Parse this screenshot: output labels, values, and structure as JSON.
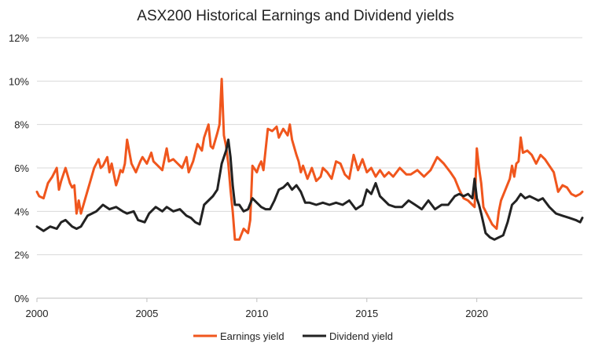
{
  "chart_data": {
    "type": "line",
    "title": "ASX200 Historical Earnings and Dividend yields",
    "xlabel": "",
    "ylabel": "",
    "xlim": [
      2000,
      2024.8
    ],
    "ylim": [
      0,
      12
    ],
    "xticks": [
      2000,
      2005,
      2010,
      2015,
      2020
    ],
    "xtick_labels": [
      "2000",
      "2005",
      "2010",
      "2015",
      "2020"
    ],
    "yticks": [
      0,
      2,
      4,
      6,
      8,
      10,
      12
    ],
    "ytick_labels": [
      "0%",
      "2%",
      "4%",
      "6%",
      "8%",
      "10%",
      "12%"
    ],
    "grid": "horizontal",
    "legend_position": "bottom-center",
    "colors": {
      "earnings": "#f0561d",
      "dividend": "#222222",
      "grid": "#d9d9d9",
      "axis": "#bfbfbf"
    },
    "series": [
      {
        "name": "Earnings yield",
        "x": [
          2000.0,
          2000.1,
          2000.3,
          2000.5,
          2000.7,
          2000.9,
          2001.0,
          2001.1,
          2001.2,
          2001.3,
          2001.5,
          2001.6,
          2001.7,
          2001.8,
          2001.9,
          2002.0,
          2002.2,
          2002.4,
          2002.6,
          2002.8,
          2002.9,
          2003.0,
          2003.2,
          2003.3,
          2003.4,
          2003.6,
          2003.7,
          2003.8,
          2003.9,
          2004.0,
          2004.1,
          2004.3,
          2004.5,
          2004.7,
          2004.8,
          2005.0,
          2005.2,
          2005.3,
          2005.5,
          2005.7,
          2005.9,
          2006.0,
          2006.2,
          2006.4,
          2006.6,
          2006.8,
          2006.9,
          2007.1,
          2007.3,
          2007.5,
          2007.6,
          2007.8,
          2007.9,
          2008.0,
          2008.2,
          2008.3,
          2008.4,
          2008.5,
          2008.6,
          2008.7,
          2008.8,
          2008.9,
          2009.0,
          2009.2,
          2009.4,
          2009.6,
          2009.7,
          2009.8,
          2010.0,
          2010.1,
          2010.2,
          2010.3,
          2010.5,
          2010.7,
          2010.9,
          2011.0,
          2011.2,
          2011.4,
          2011.5,
          2011.6,
          2011.8,
          2011.9,
          2012.0,
          2012.1,
          2012.3,
          2012.5,
          2012.7,
          2012.9,
          2013.0,
          2013.2,
          2013.4,
          2013.6,
          2013.8,
          2014.0,
          2014.2,
          2014.4,
          2014.6,
          2014.8,
          2015.0,
          2015.2,
          2015.4,
          2015.6,
          2015.8,
          2016.0,
          2016.2,
          2016.5,
          2016.8,
          2017.0,
          2017.3,
          2017.6,
          2017.9,
          2018.2,
          2018.5,
          2018.8,
          2019.0,
          2019.2,
          2019.4,
          2019.6,
          2019.8,
          2019.9,
          2020.0,
          2020.1,
          2020.2,
          2020.3,
          2020.5,
          2020.7,
          2020.9,
          2021.0,
          2021.1,
          2021.3,
          2021.5,
          2021.6,
          2021.7,
          2021.8,
          2021.9,
          2022.0,
          2022.1,
          2022.3,
          2022.5,
          2022.7,
          2022.9,
          2023.1,
          2023.3,
          2023.5,
          2023.7,
          2023.9,
          2024.1,
          2024.3,
          2024.5,
          2024.7,
          2024.8
        ],
        "values": [
          4.9,
          4.7,
          4.6,
          5.3,
          5.6,
          6.0,
          5.0,
          5.4,
          5.7,
          6.0,
          5.3,
          5.1,
          5.2,
          3.9,
          4.5,
          3.9,
          4.6,
          5.3,
          6.0,
          6.4,
          6.0,
          6.1,
          6.5,
          5.8,
          6.2,
          5.2,
          5.5,
          5.9,
          5.8,
          6.2,
          7.3,
          6.2,
          5.8,
          6.3,
          6.5,
          6.2,
          6.7,
          6.3,
          6.1,
          5.9,
          6.9,
          6.3,
          6.4,
          6.2,
          6.0,
          6.5,
          5.8,
          6.3,
          7.1,
          6.8,
          7.4,
          8.0,
          7.0,
          6.9,
          7.6,
          8.0,
          10.1,
          7.5,
          7.0,
          6.2,
          5.0,
          4.0,
          2.7,
          2.7,
          3.2,
          3.0,
          3.6,
          6.1,
          5.8,
          6.1,
          6.3,
          5.9,
          7.8,
          7.7,
          7.9,
          7.4,
          7.8,
          7.5,
          8.0,
          7.3,
          6.6,
          6.3,
          5.8,
          6.1,
          5.5,
          6.0,
          5.4,
          5.6,
          6.0,
          5.8,
          5.5,
          6.3,
          6.2,
          5.7,
          5.5,
          6.6,
          5.9,
          6.4,
          5.8,
          6.0,
          5.6,
          5.9,
          5.6,
          5.8,
          5.6,
          6.0,
          5.7,
          5.7,
          5.9,
          5.6,
          5.9,
          6.5,
          6.2,
          5.8,
          5.5,
          5.0,
          4.6,
          4.5,
          4.3,
          4.2,
          6.9,
          6.0,
          5.3,
          4.2,
          3.8,
          3.4,
          3.2,
          4.0,
          4.5,
          5.0,
          5.5,
          6.1,
          5.6,
          6.2,
          6.3,
          7.4,
          6.7,
          6.8,
          6.6,
          6.2,
          6.6,
          6.4,
          6.1,
          5.8,
          4.9,
          5.2,
          5.1,
          4.8,
          4.7,
          4.8,
          4.9
        ]
      },
      {
        "name": "Dividend yield",
        "x": [
          2000.0,
          2000.3,
          2000.6,
          2000.9,
          2001.1,
          2001.3,
          2001.6,
          2001.8,
          2002.0,
          2002.3,
          2002.5,
          2002.7,
          2003.0,
          2003.3,
          2003.6,
          2003.9,
          2004.1,
          2004.4,
          2004.6,
          2004.9,
          2005.1,
          2005.4,
          2005.7,
          2005.9,
          2006.2,
          2006.5,
          2006.8,
          2007.0,
          2007.2,
          2007.4,
          2007.6,
          2007.8,
          2008.0,
          2008.2,
          2008.4,
          2008.6,
          2008.7,
          2008.8,
          2008.9,
          2009.0,
          2009.2,
          2009.4,
          2009.6,
          2009.8,
          2010.0,
          2010.2,
          2010.4,
          2010.6,
          2010.8,
          2011.0,
          2011.2,
          2011.4,
          2011.6,
          2011.8,
          2012.0,
          2012.2,
          2012.4,
          2012.7,
          2013.0,
          2013.3,
          2013.6,
          2013.9,
          2014.2,
          2014.5,
          2014.8,
          2015.0,
          2015.2,
          2015.4,
          2015.6,
          2015.8,
          2016.0,
          2016.3,
          2016.6,
          2016.9,
          2017.2,
          2017.5,
          2017.8,
          2018.1,
          2018.4,
          2018.7,
          2019.0,
          2019.2,
          2019.4,
          2019.6,
          2019.8,
          2019.9,
          2020.0,
          2020.1,
          2020.2,
          2020.4,
          2020.6,
          2020.8,
          2021.0,
          2021.2,
          2021.4,
          2021.6,
          2021.8,
          2022.0,
          2022.2,
          2022.4,
          2022.6,
          2022.8,
          2023.0,
          2023.3,
          2023.6,
          2023.9,
          2024.2,
          2024.5,
          2024.7,
          2024.8
        ],
        "values": [
          3.3,
          3.1,
          3.3,
          3.2,
          3.5,
          3.6,
          3.3,
          3.2,
          3.3,
          3.8,
          3.9,
          4.0,
          4.3,
          4.1,
          4.2,
          4.0,
          3.9,
          4.0,
          3.6,
          3.5,
          3.9,
          4.2,
          4.0,
          4.2,
          4.0,
          4.1,
          3.8,
          3.7,
          3.5,
          3.4,
          4.3,
          4.5,
          4.7,
          5.0,
          6.2,
          6.8,
          7.3,
          6.5,
          5.2,
          4.3,
          4.3,
          4.0,
          4.1,
          4.6,
          4.4,
          4.2,
          4.1,
          4.1,
          4.5,
          5.0,
          5.1,
          5.3,
          5.0,
          5.2,
          4.9,
          4.4,
          4.4,
          4.3,
          4.4,
          4.3,
          4.4,
          4.3,
          4.5,
          4.1,
          4.3,
          5.0,
          4.8,
          5.3,
          4.7,
          4.5,
          4.3,
          4.2,
          4.2,
          4.5,
          4.3,
          4.1,
          4.5,
          4.1,
          4.3,
          4.3,
          4.7,
          4.8,
          4.7,
          4.8,
          4.6,
          5.5,
          4.6,
          4.3,
          3.9,
          3.0,
          2.8,
          2.7,
          2.8,
          2.9,
          3.5,
          4.3,
          4.5,
          4.8,
          4.6,
          4.7,
          4.6,
          4.5,
          4.6,
          4.2,
          3.9,
          3.8,
          3.7,
          3.6,
          3.5,
          3.7
        ]
      }
    ]
  }
}
